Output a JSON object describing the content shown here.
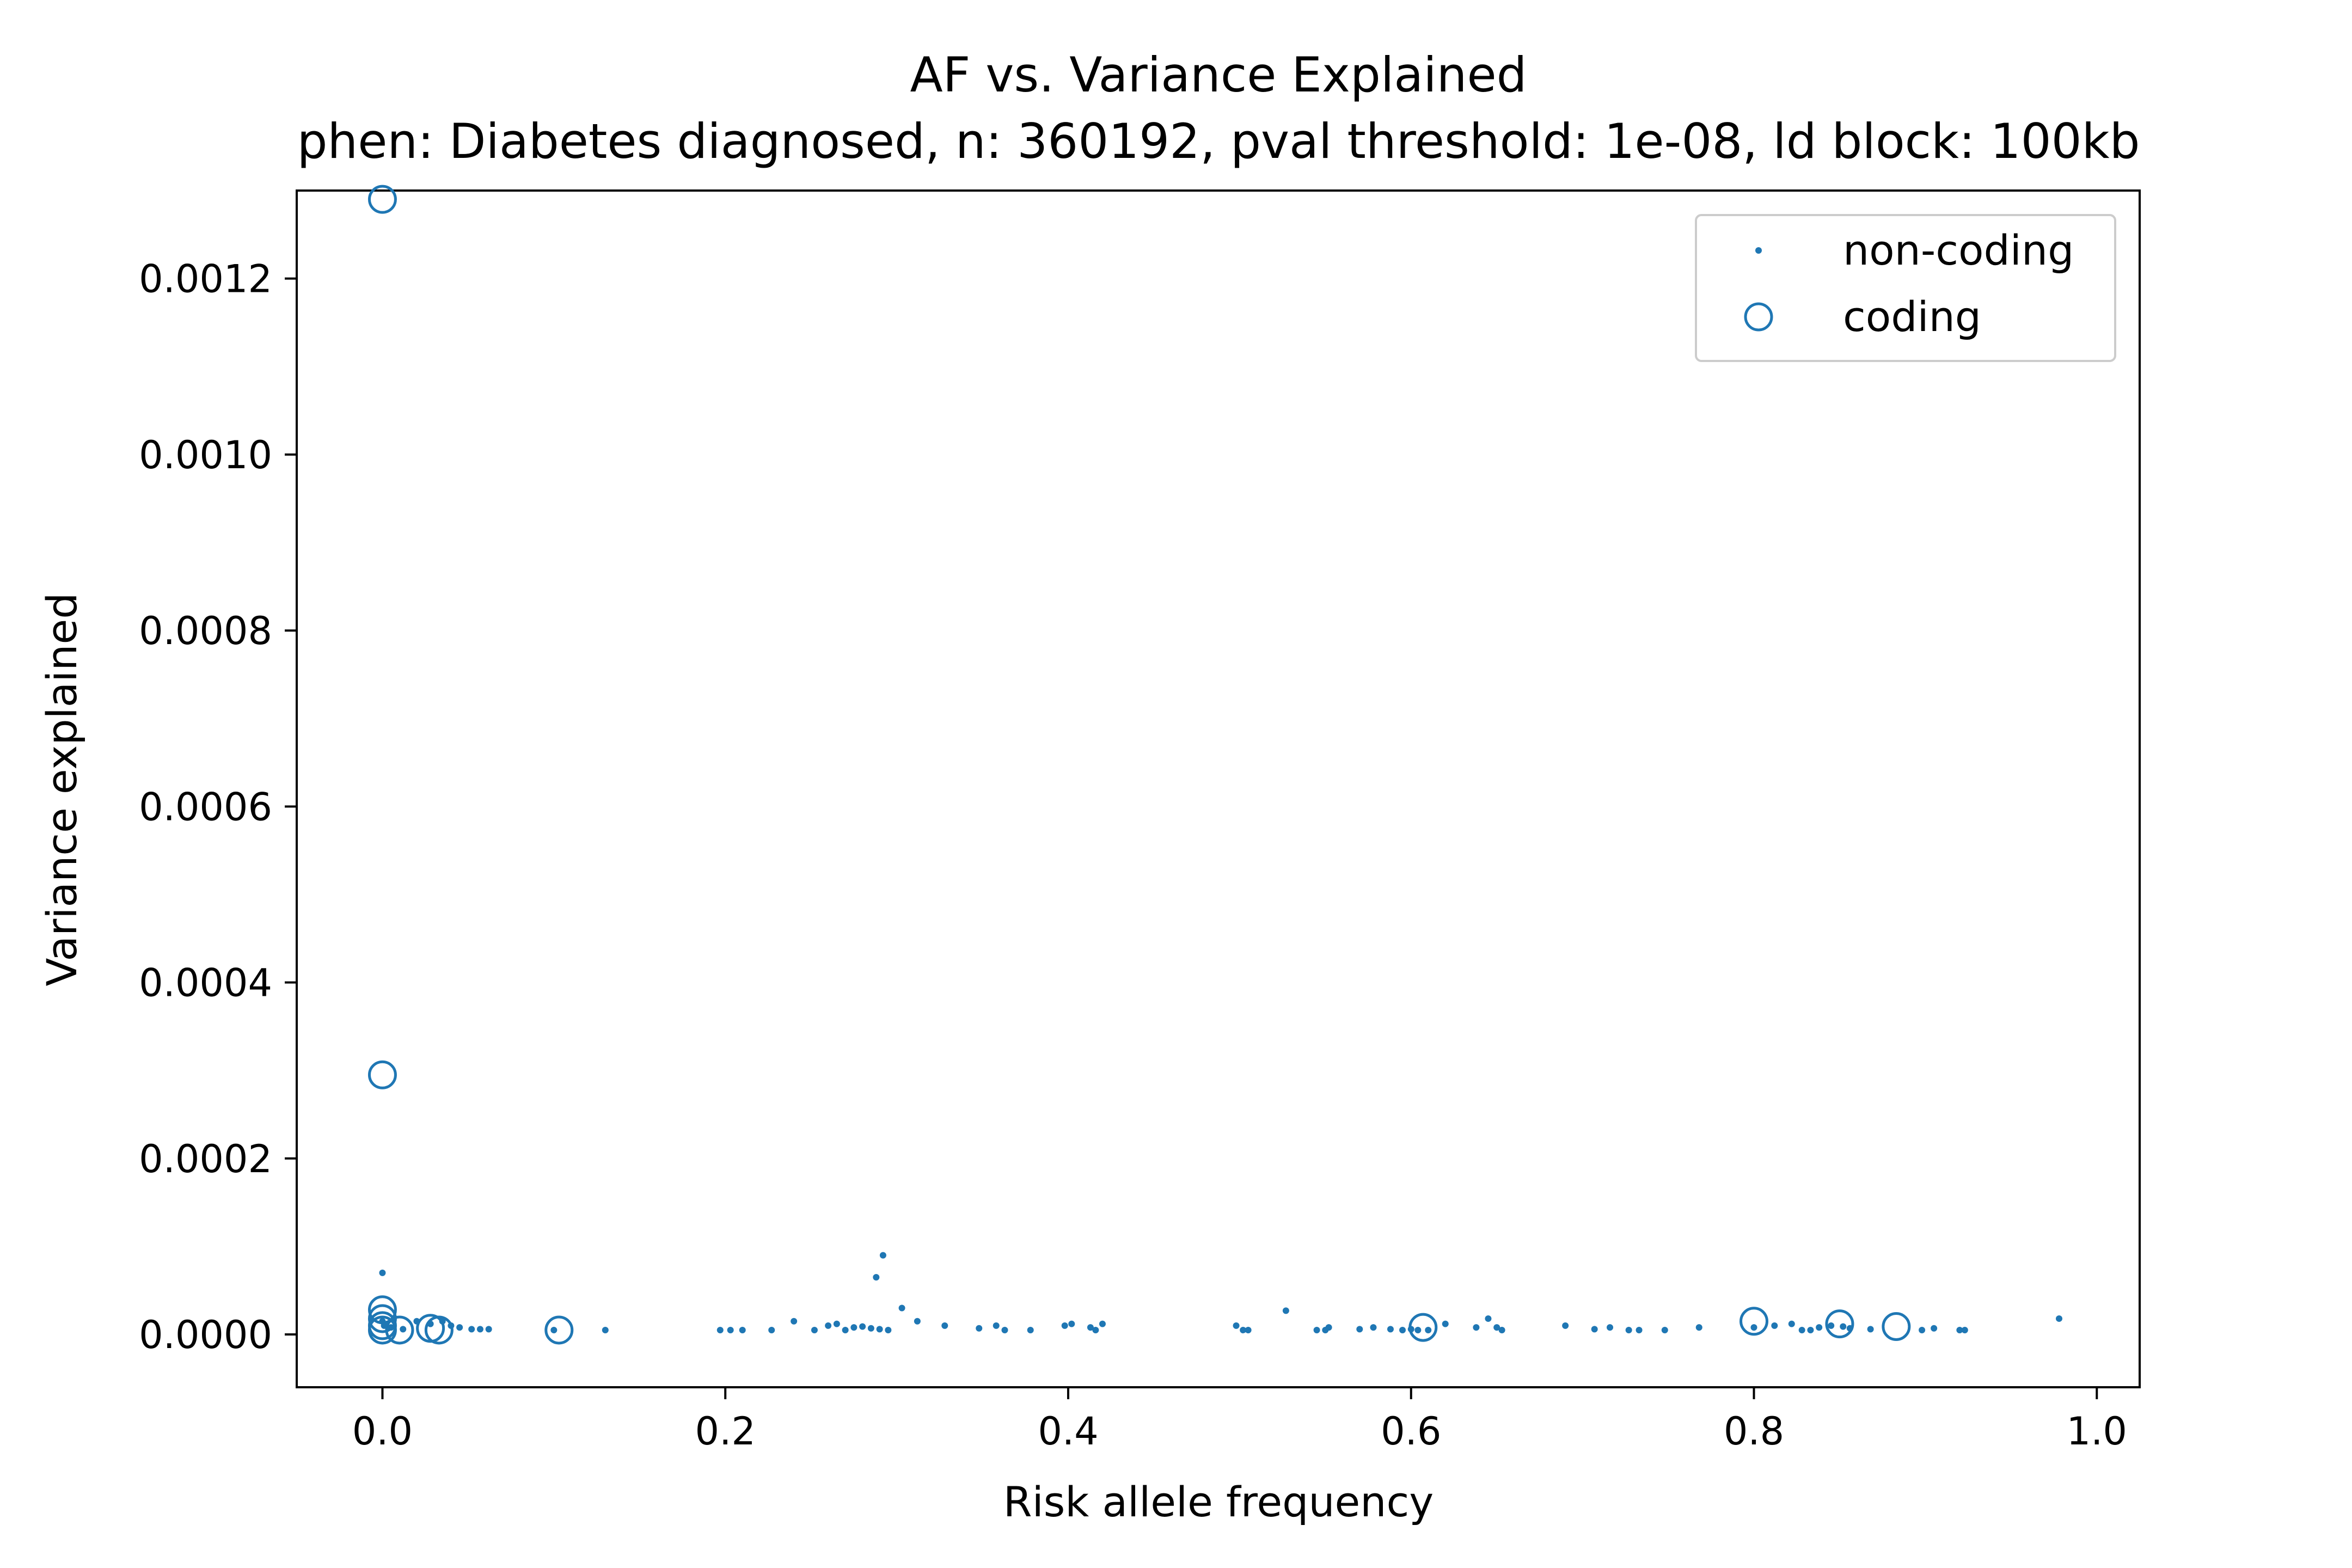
{
  "chart_data": {
    "type": "scatter",
    "title": "AF vs. Variance Explained",
    "subtitle": "phen: Diabetes diagnosed, n: 360192, pval threshold: 1e-08, ld block: 100kb",
    "xlabel": "Risk allele frequency",
    "ylabel": "Variance explained",
    "xlim": [
      -0.05,
      1.025
    ],
    "ylim": [
      -6e-05,
      0.0013
    ],
    "x_ticks": [
      {
        "value": 0.0,
        "label": "0.0"
      },
      {
        "value": 0.2,
        "label": "0.2"
      },
      {
        "value": 0.4,
        "label": "0.4"
      },
      {
        "value": 0.6,
        "label": "0.6"
      },
      {
        "value": 0.8,
        "label": "0.8"
      },
      {
        "value": 1.0,
        "label": "1.0"
      }
    ],
    "y_ticks": [
      {
        "value": 0.0,
        "label": "0.0000"
      },
      {
        "value": 0.0002,
        "label": "0.0002"
      },
      {
        "value": 0.0004,
        "label": "0.0004"
      },
      {
        "value": 0.0006,
        "label": "0.0006"
      },
      {
        "value": 0.0008,
        "label": "0.0008"
      },
      {
        "value": 0.001,
        "label": "0.0010"
      },
      {
        "value": 0.0012,
        "label": "0.0012"
      }
    ],
    "grid": false,
    "legend_position": "top-right",
    "color": "#1f77b4",
    "series": [
      {
        "name": "non-coding",
        "marker": "dot",
        "points": [
          [
            0.0,
            7e-05
          ],
          [
            0.0,
            1.5e-05
          ],
          [
            0.001,
            1e-05
          ],
          [
            0.005,
            8e-06
          ],
          [
            0.012,
            6e-06
          ],
          [
            0.02,
            1.5e-05
          ],
          [
            0.028,
            1.2e-05
          ],
          [
            0.035,
            1.5e-05
          ],
          [
            0.04,
            1e-05
          ],
          [
            0.045,
            8e-06
          ],
          [
            0.052,
            6e-06
          ],
          [
            0.057,
            6e-06
          ],
          [
            0.062,
            6e-06
          ],
          [
            0.1,
            5e-06
          ],
          [
            0.13,
            5e-06
          ],
          [
            0.197,
            5e-06
          ],
          [
            0.203,
            5e-06
          ],
          [
            0.21,
            5e-06
          ],
          [
            0.227,
            5e-06
          ],
          [
            0.24,
            1.5e-05
          ],
          [
            0.252,
            5e-06
          ],
          [
            0.26,
            1e-05
          ],
          [
            0.265,
            1.2e-05
          ],
          [
            0.27,
            5e-06
          ],
          [
            0.275,
            8e-06
          ],
          [
            0.28,
            9e-06
          ],
          [
            0.285,
            7e-06
          ],
          [
            0.29,
            6e-06
          ],
          [
            0.288,
            6.5e-05
          ],
          [
            0.292,
            9e-05
          ],
          [
            0.295,
            5e-06
          ],
          [
            0.303,
            3e-05
          ],
          [
            0.312,
            1.5e-05
          ],
          [
            0.328,
            1e-05
          ],
          [
            0.348,
            7e-06
          ],
          [
            0.358,
            1e-05
          ],
          [
            0.363,
            5e-06
          ],
          [
            0.378,
            5e-06
          ],
          [
            0.398,
            1e-05
          ],
          [
            0.402,
            1.2e-05
          ],
          [
            0.413,
            8e-06
          ],
          [
            0.416,
            5e-06
          ],
          [
            0.42,
            1.2e-05
          ],
          [
            0.498,
            1e-05
          ],
          [
            0.502,
            5e-06
          ],
          [
            0.505,
            5e-06
          ],
          [
            0.527,
            2.7e-05
          ],
          [
            0.545,
            5e-06
          ],
          [
            0.55,
            5e-06
          ],
          [
            0.552,
            8e-06
          ],
          [
            0.57,
            6e-06
          ],
          [
            0.578,
            8e-06
          ],
          [
            0.588,
            6e-06
          ],
          [
            0.595,
            5e-06
          ],
          [
            0.6,
            6e-06
          ],
          [
            0.604,
            5e-06
          ],
          [
            0.61,
            5e-06
          ],
          [
            0.62,
            1.2e-05
          ],
          [
            0.638,
            8e-06
          ],
          [
            0.645,
            1.8e-05
          ],
          [
            0.65,
            8e-06
          ],
          [
            0.653,
            5e-06
          ],
          [
            0.69,
            1e-05
          ],
          [
            0.707,
            6e-06
          ],
          [
            0.716,
            8e-06
          ],
          [
            0.727,
            5e-06
          ],
          [
            0.733,
            5e-06
          ],
          [
            0.748,
            5e-06
          ],
          [
            0.768,
            8e-06
          ],
          [
            0.8,
            8e-06
          ],
          [
            0.812,
            1e-05
          ],
          [
            0.822,
            1.2e-05
          ],
          [
            0.828,
            5e-06
          ],
          [
            0.833,
            5e-06
          ],
          [
            0.838,
            8e-06
          ],
          [
            0.845,
            1e-05
          ],
          [
            0.852,
            9e-06
          ],
          [
            0.856,
            7e-06
          ],
          [
            0.868,
            6e-06
          ],
          [
            0.898,
            5e-06
          ],
          [
            0.905,
            7e-06
          ],
          [
            0.92,
            5e-06
          ],
          [
            0.923,
            5e-06
          ],
          [
            0.978,
            1.8e-05
          ]
        ]
      },
      {
        "name": "coding",
        "marker": "circle-open",
        "points": [
          [
            0.0,
            0.00129
          ],
          [
            0.0,
            0.000295
          ],
          [
            0.0,
            2.8e-05
          ],
          [
            0.0,
            1.8e-05
          ],
          [
            0.0,
            1e-05
          ],
          [
            0.0,
            5e-06
          ],
          [
            0.01,
            5e-06
          ],
          [
            0.028,
            7e-06
          ],
          [
            0.033,
            5e-06
          ],
          [
            0.103,
            5e-06
          ],
          [
            0.607,
            8e-06
          ],
          [
            0.8,
            1.5e-05
          ],
          [
            0.85,
            1.2e-05
          ],
          [
            0.883,
            9e-06
          ]
        ]
      }
    ]
  }
}
